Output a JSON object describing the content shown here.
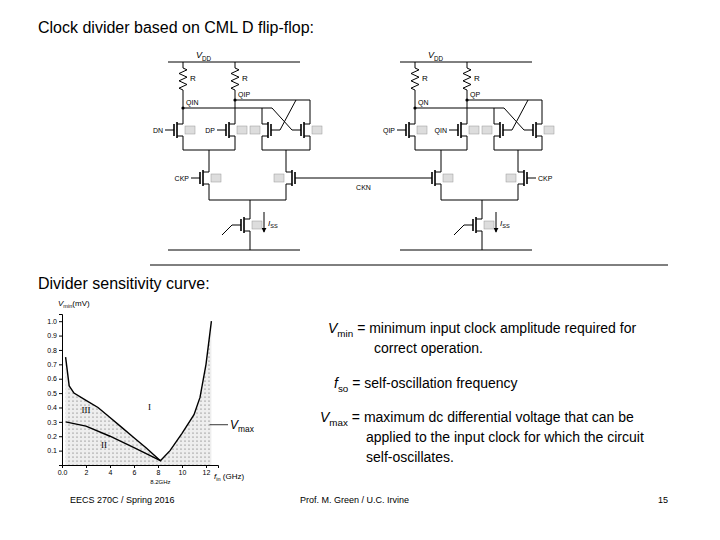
{
  "title": "Clock divider based on CML D flip-flop:",
  "circuit": {
    "latches": [
      {
        "supply": {
          "main": "V",
          "sub": "DD"
        },
        "loads": [
          "R",
          "R"
        ],
        "outputs": [
          "QIN",
          "QIP"
        ],
        "inputs": [
          "DN",
          "DP"
        ],
        "tail": {
          "main": "I",
          "sub": "SS"
        }
      },
      {
        "supply": {
          "main": "V",
          "sub": "DD"
        },
        "loads": [
          "R",
          "R"
        ],
        "outputs": [
          "QN",
          "QP"
        ],
        "inputs": [
          "QIP",
          "QIN"
        ],
        "tail": {
          "main": "I",
          "sub": "SS"
        }
      }
    ],
    "clocks": [
      "CKP",
      "CKN",
      "CKP"
    ]
  },
  "subtitle": "Divider sensitivity curve:",
  "chart_data": {
    "type": "line",
    "x_label": {
      "main": "f",
      "sub": "in",
      "rest": " (GHz)"
    },
    "y_label": {
      "main": "V",
      "sub": "min",
      "rest": "(mV)"
    },
    "xlim": [
      0,
      13
    ],
    "ylim": [
      0,
      1.05
    ],
    "xticks": [
      {
        "value": 0,
        "label": "0.0"
      },
      2,
      4,
      6,
      8,
      10,
      12
    ],
    "yticks": [
      0.1,
      0.2,
      0.3,
      0.4,
      0.5,
      0.6,
      0.7,
      0.8,
      0.9,
      {
        "value": 1,
        "label": "1.0"
      }
    ],
    "series": [
      {
        "x": [
          0.3,
          0.6,
          1,
          2,
          3,
          4,
          5,
          6,
          7,
          8.2,
          9,
          10,
          11,
          11.5,
          12,
          12.3,
          12.45
        ],
        "values": [
          0.75,
          0.55,
          0.5,
          0.45,
          0.4,
          0.33,
          0.26,
          0.19,
          0.12,
          0.03,
          0.1,
          0.22,
          0.35,
          0.47,
          0.7,
          0.9,
          1.0
        ],
        "color": "#000000"
      },
      {
        "x": [
          0.3,
          2,
          4,
          6,
          8.2
        ],
        "values": [
          0.3,
          0.27,
          0.2,
          0.12,
          0.03
        ],
        "color": "#000000"
      }
    ],
    "annotations": [
      {
        "text": "I",
        "x": 7.3,
        "y": 0.38
      },
      {
        "text": "II",
        "x": 3.5,
        "y": 0.12
      },
      {
        "text": "III",
        "x": 2,
        "y": 0.36
      },
      {
        "text": "8.2GHz",
        "x": 8.2
      },
      {
        "text": {
          "main": "V",
          "sub": "max"
        },
        "x": 12.3,
        "y": 0.28
      }
    ]
  },
  "definitions": [
    {
      "symbol": {
        "main": "V",
        "sub": "min"
      },
      "lines": [
        "= minimum input clock amplitude required for",
        "correct operation."
      ]
    },
    {
      "symbol": {
        "main": "f",
        "sub": "so"
      },
      "lines": [
        "= self-oscillation frequency"
      ]
    },
    {
      "symbol": {
        "main": "V",
        "sub": "max"
      },
      "lines": [
        "= maximum dc differential voltage that can be",
        "applied to the input clock for which the circuit",
        "self-oscillates."
      ]
    }
  ],
  "footer": {
    "left": "EECS 270C / Spring 2016",
    "center": "Prof. M. Green / U.C. Irvine",
    "page": 15
  }
}
